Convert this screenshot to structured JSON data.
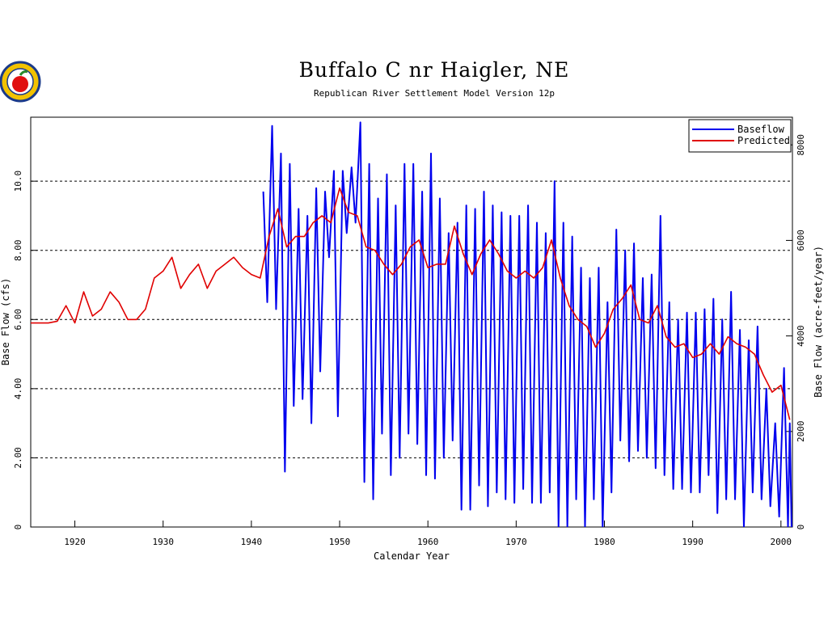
{
  "chart_data": {
    "type": "line",
    "title": "Buffalo C nr Haigler, NE",
    "subtitle": "Republican River Settlement Model Version 12p",
    "xlabel": "Calendar Year",
    "ylabel": "Base Flow (cfs)",
    "y2label": "Base Flow (acre-feet/year)",
    "xlim": [
      1915,
      2001.3
    ],
    "xticks": [
      1920,
      1930,
      1940,
      1950,
      1960,
      1970,
      1980,
      1990,
      2000
    ],
    "ylim": [
      0,
      11.85
    ],
    "yticks": [
      0,
      {
        "value": 2,
        "label": "2.00"
      },
      {
        "value": 4,
        "label": "4.00"
      },
      {
        "value": 6,
        "label": "6.00"
      },
      {
        "value": 8,
        "label": "8.00"
      },
      {
        "value": 10,
        "label": "10.0"
      }
    ],
    "y2lim": [
      0,
      8579
    ],
    "y2ticks": [
      0,
      2000,
      4000,
      6000,
      8000
    ],
    "grid": true,
    "legend": "upper right",
    "series": [
      {
        "name": "Baseflow",
        "color": "#0000ee",
        "x": [
          1941.35,
          1941.8,
          1942.35,
          1942.8,
          1943.35,
          1943.8,
          1944.35,
          1944.8,
          1945.35,
          1945.8,
          1946.35,
          1946.8,
          1947.35,
          1947.8,
          1948.35,
          1948.8,
          1949.35,
          1949.8,
          1950.35,
          1950.8,
          1951.35,
          1951.8,
          1952.35,
          1952.8,
          1953.35,
          1953.8,
          1954.35,
          1954.8,
          1955.35,
          1955.8,
          1956.35,
          1956.8,
          1957.35,
          1957.8,
          1958.35,
          1958.8,
          1959.35,
          1959.8,
          1960.35,
          1960.8,
          1961.35,
          1961.8,
          1962.35,
          1962.8,
          1963.35,
          1963.8,
          1964.35,
          1964.8,
          1965.35,
          1965.8,
          1966.35,
          1966.8,
          1967.35,
          1967.8,
          1968.35,
          1968.8,
          1969.35,
          1969.8,
          1970.35,
          1970.8,
          1971.35,
          1971.8,
          1972.35,
          1972.8,
          1973.35,
          1973.8,
          1974.35,
          1974.8,
          1975.35,
          1975.8,
          1976.35,
          1976.8,
          1977.35,
          1977.8,
          1978.35,
          1978.8,
          1979.35,
          1979.8,
          1980.35,
          1980.8,
          1981.35,
          1981.8,
          1982.35,
          1982.8,
          1983.35,
          1983.8,
          1984.35,
          1984.8,
          1985.35,
          1985.8,
          1986.35,
          1986.8,
          1987.35,
          1987.8,
          1988.35,
          1988.8,
          1989.35,
          1989.8,
          1990.35,
          1990.8,
          1991.35,
          1991.8,
          1992.35,
          1992.8,
          1993.35,
          1993.8,
          1994.35,
          1994.8,
          1995.35,
          1995.8,
          1996.35,
          1996.8,
          1997.35,
          1997.8,
          1998.35,
          1998.8,
          1999.35,
          1999.8,
          2000.35,
          2000.8,
          2001.0,
          2001.2
        ],
        "values": [
          9.7,
          6.5,
          11.6,
          6.3,
          10.8,
          1.6,
          10.5,
          3.5,
          9.2,
          3.7,
          9.0,
          3.0,
          9.8,
          4.5,
          9.7,
          7.8,
          10.3,
          3.2,
          10.3,
          8.5,
          10.4,
          8.8,
          11.7,
          1.3,
          10.5,
          0.8,
          9.5,
          2.7,
          10.2,
          1.5,
          9.3,
          2.0,
          10.5,
          2.7,
          10.5,
          2.4,
          9.7,
          1.5,
          10.8,
          1.4,
          9.5,
          2.0,
          8.5,
          2.5,
          8.8,
          0.5,
          9.3,
          0.5,
          9.2,
          1.2,
          9.7,
          0.6,
          9.3,
          1.0,
          9.1,
          0.8,
          9.0,
          0.7,
          9.0,
          1.1,
          9.3,
          0.7,
          8.8,
          0.7,
          8.5,
          1.0,
          10.0,
          0.0,
          8.8,
          0.0,
          8.4,
          0.8,
          7.5,
          0.0,
          7.2,
          0.8,
          7.5,
          0.0,
          6.5,
          1.0,
          8.6,
          2.5,
          8.0,
          1.9,
          8.2,
          2.2,
          7.2,
          2.0,
          7.3,
          1.7,
          9.0,
          1.5,
          6.5,
          1.1,
          6.0,
          1.1,
          6.2,
          1.0,
          6.2,
          1.0,
          6.3,
          1.5,
          6.6,
          0.4,
          6.0,
          0.8,
          6.8,
          0.8,
          5.7,
          0.0,
          5.4,
          1.0,
          5.8,
          0.8,
          4.0,
          0.6,
          3.0,
          0.3,
          4.6,
          0.0,
          3.0,
          0.0
        ]
      },
      {
        "name": "Predicted",
        "color": "#e00000",
        "x": [
          1915,
          1916,
          1917,
          1918,
          1919,
          1920,
          1921,
          1922,
          1923,
          1924,
          1925,
          1926,
          1927,
          1928,
          1929,
          1930,
          1931,
          1932,
          1933,
          1934,
          1935,
          1936,
          1937,
          1938,
          1939,
          1940,
          1941,
          1942,
          1943,
          1944,
          1945,
          1946,
          1947,
          1948,
          1949,
          1950,
          1951,
          1952,
          1953,
          1954,
          1955,
          1956,
          1957,
          1958,
          1959,
          1960,
          1961,
          1962,
          1963,
          1964,
          1965,
          1966,
          1967,
          1968,
          1969,
          1970,
          1971,
          1972,
          1973,
          1974,
          1975,
          1976,
          1977,
          1978,
          1979,
          1980,
          1981,
          1982,
          1983,
          1984,
          1985,
          1986,
          1987,
          1988,
          1989,
          1990,
          1991,
          1992,
          1993,
          1994,
          1995,
          1996,
          1997,
          1998,
          1999,
          2000,
          2001
        ],
        "values": [
          5.9,
          5.9,
          5.9,
          5.95,
          6.4,
          5.9,
          6.8,
          6.1,
          6.3,
          6.8,
          6.5,
          6.0,
          6.0,
          6.3,
          7.2,
          7.4,
          7.8,
          6.9,
          7.3,
          7.6,
          6.9,
          7.4,
          7.6,
          7.8,
          7.5,
          7.3,
          7.2,
          8.4,
          9.2,
          8.1,
          8.4,
          8.4,
          8.8,
          9.0,
          8.8,
          9.8,
          9.1,
          9.0,
          8.1,
          8.0,
          7.6,
          7.3,
          7.6,
          8.1,
          8.3,
          7.5,
          7.6,
          7.6,
          8.7,
          7.9,
          7.3,
          7.9,
          8.3,
          7.9,
          7.4,
          7.2,
          7.4,
          7.2,
          7.5,
          8.3,
          7.2,
          6.4,
          6.0,
          5.8,
          5.2,
          5.6,
          6.3,
          6.6,
          7.0,
          6.0,
          5.9,
          6.4,
          5.5,
          5.2,
          5.3,
          4.9,
          5.0,
          5.3,
          5.0,
          5.5,
          5.3,
          5.2,
          5.0,
          4.4,
          3.9,
          4.1,
          3.1
        ]
      }
    ]
  }
}
